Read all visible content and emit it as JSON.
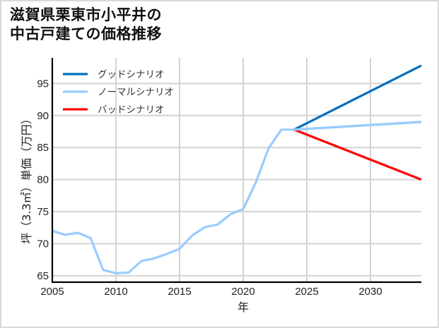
{
  "title": {
    "line1": "滋賀県栗東市小平井の",
    "line2": "中古戸建ての価格推移"
  },
  "colors": {
    "good": "#0070c0",
    "normal": "#99ccff",
    "bad": "#ff0000",
    "grid": "#d3d3d3",
    "axis": "#000000",
    "frame": "#d9d9d9"
  },
  "chart_data": {
    "type": "line",
    "title": "滋賀県栗東市小平井の中古戸建ての価格推移",
    "xlabel": "年",
    "ylabel": "坪（3.3㎡）単価（万円）",
    "xlim": [
      2005,
      2034
    ],
    "ylim": [
      64,
      99
    ],
    "x_ticks": [
      2005,
      2010,
      2015,
      2020,
      2025,
      2030
    ],
    "y_ticks": [
      65,
      70,
      75,
      80,
      85,
      90,
      95
    ],
    "grid": true,
    "legend_position": "upper left",
    "legend": [
      "グッドシナリオ",
      "ノーマルシナリオ",
      "バッドシナリオ"
    ],
    "series": [
      {
        "name": "グッドシナリオ",
        "color": "#0070c0",
        "x": [
          2024,
          2034
        ],
        "values": [
          87.8,
          97.8
        ]
      },
      {
        "name": "ノーマルシナリオ",
        "color": "#99ccff",
        "x": [
          2005,
          2006,
          2007,
          2008,
          2009,
          2010,
          2011,
          2012,
          2013,
          2014,
          2015,
          2016,
          2017,
          2018,
          2019,
          2020,
          2021,
          2022,
          2023,
          2024,
          2034
        ],
        "values": [
          72.0,
          71.4,
          71.7,
          70.9,
          65.9,
          65.4,
          65.5,
          67.3,
          67.7,
          68.4,
          69.2,
          71.3,
          72.6,
          73.0,
          74.6,
          75.4,
          79.6,
          84.9,
          87.8,
          87.8,
          89.0
        ]
      },
      {
        "name": "バッドシナリオ",
        "color": "#ff0000",
        "x": [
          2024,
          2034
        ],
        "values": [
          87.8,
          80.0
        ]
      }
    ]
  }
}
